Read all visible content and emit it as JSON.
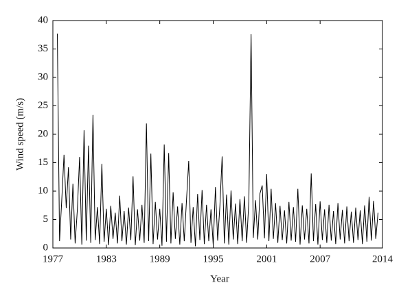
{
  "chart_data": {
    "type": "line",
    "xlabel": "Year",
    "ylabel": "Wind speed (m/s)",
    "color": "#000000",
    "x": [
      1977.5,
      1977.75,
      1978,
      1978.25,
      1978.5,
      1978.75,
      1979,
      1979.25,
      1979.5,
      1979.75,
      1980,
      1980.25,
      1980.5,
      1980.75,
      1981,
      1981.25,
      1981.5,
      1981.75,
      1982,
      1982.25,
      1982.5,
      1982.75,
      1983,
      1983.25,
      1983.5,
      1983.75,
      1984,
      1984.25,
      1984.5,
      1984.75,
      1985,
      1985.25,
      1985.5,
      1985.75,
      1986,
      1986.25,
      1986.5,
      1986.75,
      1987,
      1987.25,
      1987.5,
      1987.75,
      1988,
      1988.25,
      1988.5,
      1988.75,
      1989,
      1989.25,
      1989.5,
      1989.75,
      1990,
      1990.25,
      1990.5,
      1990.75,
      1991,
      1991.25,
      1991.5,
      1991.75,
      1992,
      1992.25,
      1992.5,
      1992.75,
      1993,
      1993.25,
      1993.5,
      1993.75,
      1994,
      1994.25,
      1994.5,
      1994.75,
      1995,
      1995.25,
      1995.5,
      1995.75,
      1996,
      1996.25,
      1996.5,
      1996.75,
      1997,
      1997.25,
      1997.5,
      1997.75,
      1998,
      1998.25,
      1998.5,
      1998.75,
      1999,
      1999.25,
      1999.5,
      1999.75,
      2000,
      2000.25,
      2000.5,
      2000.75,
      2001,
      2001.25,
      2001.5,
      2001.75,
      2002,
      2002.25,
      2002.5,
      2002.75,
      2003,
      2003.25,
      2003.5,
      2003.75,
      2004,
      2004.25,
      2004.5,
      2004.75,
      2005,
      2005.25,
      2005.5,
      2005.75,
      2006,
      2006.25,
      2006.5,
      2006.75,
      2007,
      2007.25,
      2007.5,
      2007.75,
      2008,
      2008.25,
      2008.5,
      2008.75,
      2009,
      2009.25,
      2009.5,
      2009.75,
      2010,
      2010.25,
      2010.5,
      2010.75,
      2011,
      2011.25,
      2011.5,
      2011.75,
      2012,
      2012.25,
      2012.5,
      2012.75,
      2013,
      2013.25,
      2013.5
    ],
    "values": [
      37.7,
      1.2,
      8.5,
      16.4,
      7,
      14.2,
      1.5,
      11.3,
      0.8,
      6.8,
      16,
      0.6,
      20.7,
      1.3,
      18,
      0.9,
      23.4,
      1.4,
      7.2,
      0.7,
      14.8,
      1.1,
      6.9,
      0.5,
      7.4,
      1.6,
      6.2,
      0.8,
      9.2,
      1.2,
      6.5,
      0.6,
      7.1,
      1.4,
      12.6,
      0.5,
      6.8,
      1.3,
      7.6,
      0.9,
      21.9,
      1.2,
      16.6,
      0.7,
      8.1,
      1.5,
      6.9,
      0.4,
      18.2,
      1.1,
      16.7,
      0.8,
      9.8,
      1.6,
      7.3,
      0.6,
      7.9,
      1.2,
      8.4,
      15.3,
      0.9,
      7.2,
      0.3,
      9.5,
      1.4,
      10.2,
      0.7,
      7.6,
      1.2,
      6.8,
      0.5,
      10.7,
      1.3,
      7.4,
      16.1,
      0.8,
      9.4,
      0.6,
      10.1,
      1.5,
      7.8,
      0.7,
      8.6,
      1.2,
      9.1,
      0.9,
      8.2,
      37.6,
      1.8,
      8.4,
      1.5,
      9.6,
      11,
      1.7,
      13,
      1.2,
      10.4,
      1.6,
      7.9,
      0.9,
      7.4,
      1.4,
      6.6,
      0.8,
      8.1,
      1.3,
      7.2,
      1.1,
      10.4,
      0.6,
      7.5,
      1.5,
      6.9,
      0.8,
      13.1,
      1.2,
      7.7,
      0.6,
      8.2,
      1.4,
      6.8,
      0.9,
      7.6,
      1.3,
      6.5,
      0.7,
      7.9,
      1.5,
      6.7,
      0.8,
      7.3,
      1.2,
      6.4,
      0.9,
      7.1,
      1.4,
      6.6,
      0.7,
      7.5,
      1.1,
      9,
      1.3,
      8.3,
      1.6,
      6.2
    ],
    "xlim": [
      1977,
      2014
    ],
    "xticks": [
      1977,
      1983,
      1989,
      1995,
      2001,
      2007,
      2014
    ],
    "ylim": [
      0,
      40
    ],
    "yticks": [
      0,
      5,
      10,
      15,
      20,
      25,
      30,
      35,
      40
    ]
  }
}
